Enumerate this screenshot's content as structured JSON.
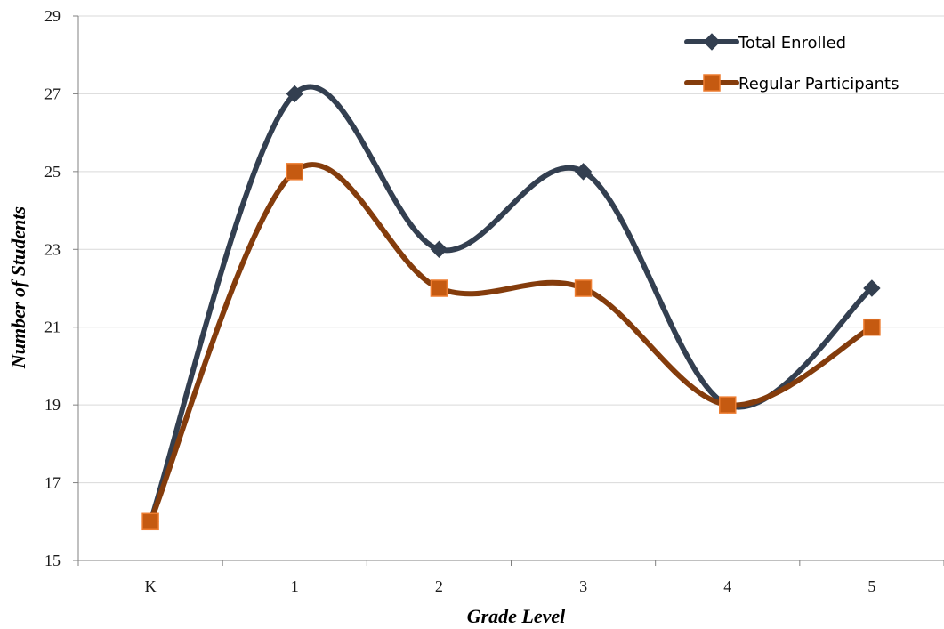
{
  "chart_data": {
    "type": "line",
    "smooth": true,
    "categories": [
      "K",
      "1",
      "2",
      "3",
      "4",
      "5"
    ],
    "series": [
      {
        "name": "Total Enrolled",
        "values": [
          16,
          27,
          23,
          25,
          19,
          22
        ],
        "color": "#333f50",
        "marker": "diamond"
      },
      {
        "name": "Regular Participants",
        "values": [
          16,
          25,
          22,
          22,
          19,
          21
        ],
        "color": "#843c0c",
        "marker": "square",
        "marker_fill": "#c55a11",
        "marker_edge": "#ed7d31"
      }
    ],
    "xlabel": "Grade Level",
    "ylabel": "Number of Students",
    "ylim": [
      15,
      29
    ],
    "yticks": [
      15,
      17,
      19,
      21,
      23,
      25,
      27,
      29
    ],
    "grid": true,
    "legend": "top-right"
  }
}
